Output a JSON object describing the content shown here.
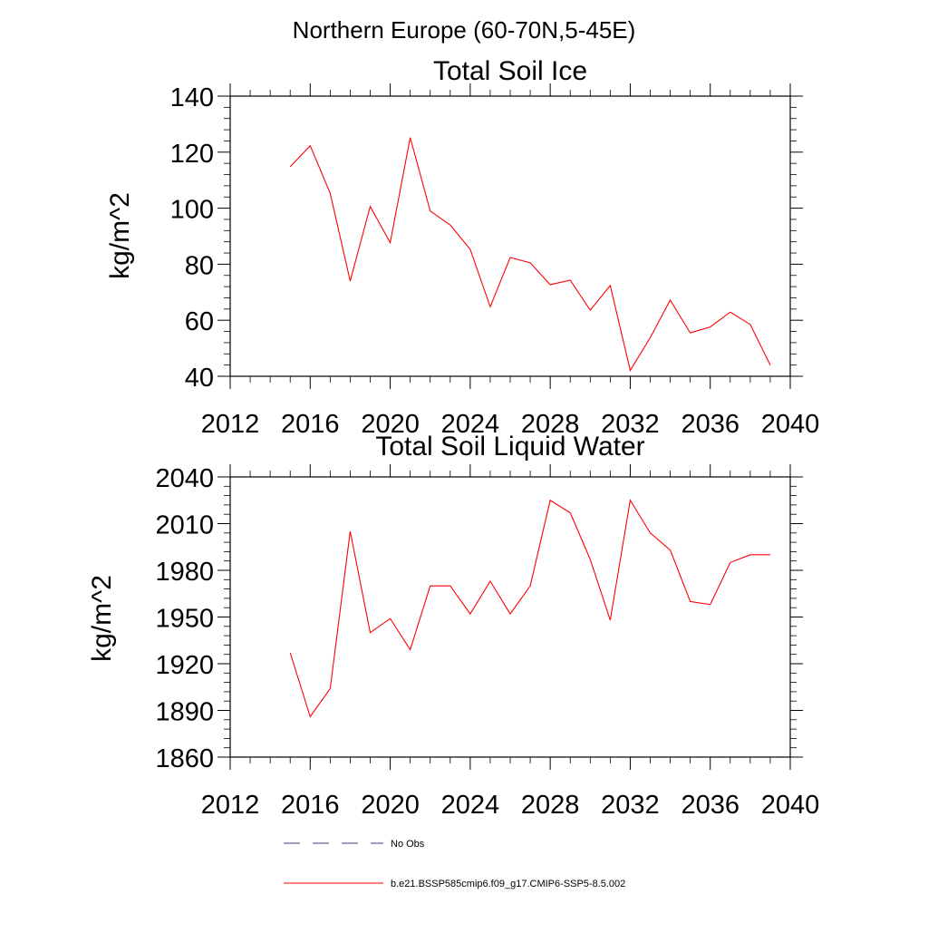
{
  "figure_title": "Northern Europe (60-70N,5-45E)",
  "colors": {
    "model_line": "#ff0000",
    "obs_line": "#3a3a8c",
    "axis": "#000000"
  },
  "chart_data": [
    {
      "type": "line",
      "title": "Total Soil Ice",
      "xlabel": "",
      "ylabel": "kg/m^2",
      "xlim": [
        2012,
        2040
      ],
      "ylim": [
        40,
        140
      ],
      "x_ticks": [
        "2012",
        "2016",
        "2020",
        "2024",
        "2028",
        "2032",
        "2036",
        "2040"
      ],
      "y_ticks": [
        "40",
        "60",
        "80",
        "100",
        "120",
        "140"
      ],
      "series": [
        {
          "name": "b.e21.BSSP585cmip6.f09_g17.CMIP6-SSP5-8.5.002",
          "x": [
            2015,
            2016,
            2017,
            2018,
            2019,
            2020,
            2021,
            2022,
            2023,
            2024,
            2025,
            2026,
            2027,
            2028,
            2029,
            2030,
            2031,
            2032,
            2033,
            2034,
            2035,
            2036,
            2037,
            2038,
            2039
          ],
          "values": [
            114.8,
            122.3,
            105.3,
            74.0,
            100.6,
            87.7,
            125.2,
            99.0,
            94.0,
            85.3,
            64.8,
            82.4,
            80.5,
            72.7,
            74.3,
            63.6,
            72.4,
            42.1,
            53.8,
            67.2,
            55.5,
            57.6,
            62.9,
            58.5,
            44.0
          ]
        }
      ]
    },
    {
      "type": "line",
      "title": "Total Soil Liquid Water",
      "xlabel": "",
      "ylabel": "kg/m^2",
      "xlim": [
        2012,
        2040
      ],
      "ylim": [
        1860,
        2040
      ],
      "x_ticks": [
        "2012",
        "2016",
        "2020",
        "2024",
        "2028",
        "2032",
        "2036",
        "2040"
      ],
      "y_ticks": [
        "1860",
        "1890",
        "1920",
        "1950",
        "1980",
        "2010",
        "2040"
      ],
      "series": [
        {
          "name": "b.e21.BSSP585cmip6.f09_g17.CMIP6-SSP5-8.5.002",
          "x": [
            2015,
            2016,
            2017,
            2018,
            2019,
            2020,
            2021,
            2022,
            2023,
            2024,
            2025,
            2026,
            2027,
            2028,
            2029,
            2030,
            2031,
            2032,
            2033,
            2034,
            2035,
            2036,
            2037,
            2038,
            2039
          ],
          "values": [
            1927,
            1886,
            1904,
            2005,
            1940,
            1949,
            1929,
            1970,
            1970,
            1952,
            1973,
            1952,
            1970,
            2025,
            2017,
            1987,
            1948,
            2025,
            2004,
            1993,
            1960,
            1958,
            1985,
            1990,
            1990
          ]
        }
      ]
    }
  ],
  "legend": [
    {
      "label": "No Obs",
      "style": "dashed"
    },
    {
      "label": "b.e21.BSSP585cmip6.f09_g17.CMIP6-SSP5-8.5.002",
      "style": "solid"
    }
  ]
}
